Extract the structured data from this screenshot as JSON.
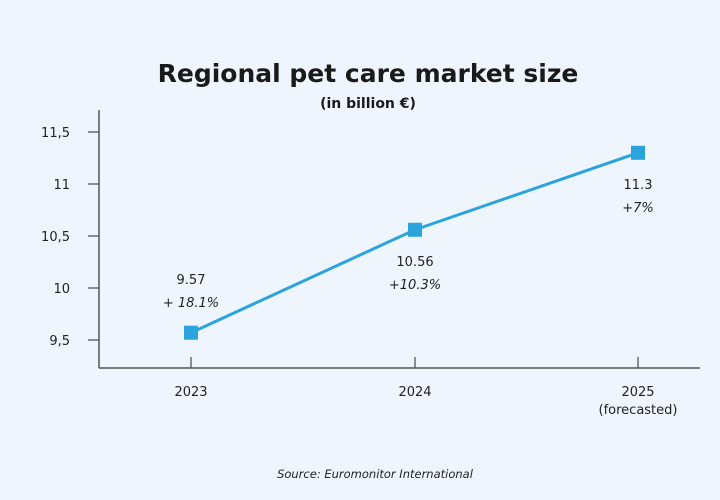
{
  "chart_data": {
    "type": "line",
    "title": "Regional pet care market size",
    "subtitle": "(in billion €)",
    "categories": [
      "2023",
      "2024",
      "2025"
    ],
    "category_sublabels": [
      "",
      "",
      "(forecasted)"
    ],
    "series": [
      {
        "values": [
          9.57,
          10.56,
          11.3
        ]
      }
    ],
    "data_labels": [
      "9.57",
      "10.56",
      "11.3"
    ],
    "growth_labels": [
      "+ 18.1%",
      "+10.3%",
      "+7%"
    ],
    "yticks": [
      9.5,
      10,
      10.5,
      11,
      11.5
    ],
    "ytick_labels": [
      "9,5",
      "10",
      "10,5",
      "11",
      "11,5"
    ],
    "ylim": [
      9.3,
      11.7
    ],
    "grid": false,
    "legend": "none",
    "marker": "square",
    "line_color": "#2ba3dc",
    "source": "Source: Euromonitor International"
  }
}
